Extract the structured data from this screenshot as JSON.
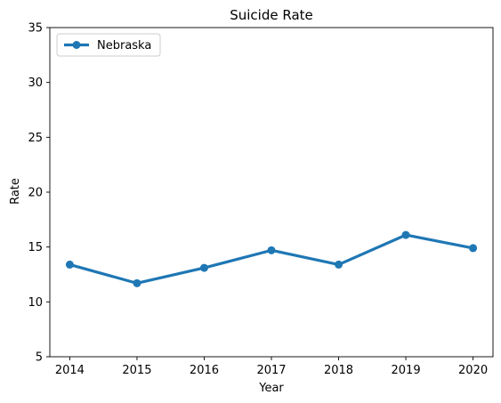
{
  "chart_data": {
    "type": "line",
    "title": "Suicide Rate",
    "xlabel": "Year",
    "ylabel": "Rate",
    "x": [
      "2014",
      "2015",
      "2016",
      "2017",
      "2018",
      "2019",
      "2020"
    ],
    "series": [
      {
        "name": "Nebraska",
        "values": [
          13.4,
          11.7,
          13.1,
          14.7,
          13.4,
          16.1,
          14.9
        ],
        "color": "#1f77b4"
      }
    ],
    "ylim": [
      5,
      35
    ],
    "yticks": [
      5,
      10,
      15,
      20,
      25,
      30,
      35
    ],
    "grid": false,
    "legend_position": "top-left"
  }
}
